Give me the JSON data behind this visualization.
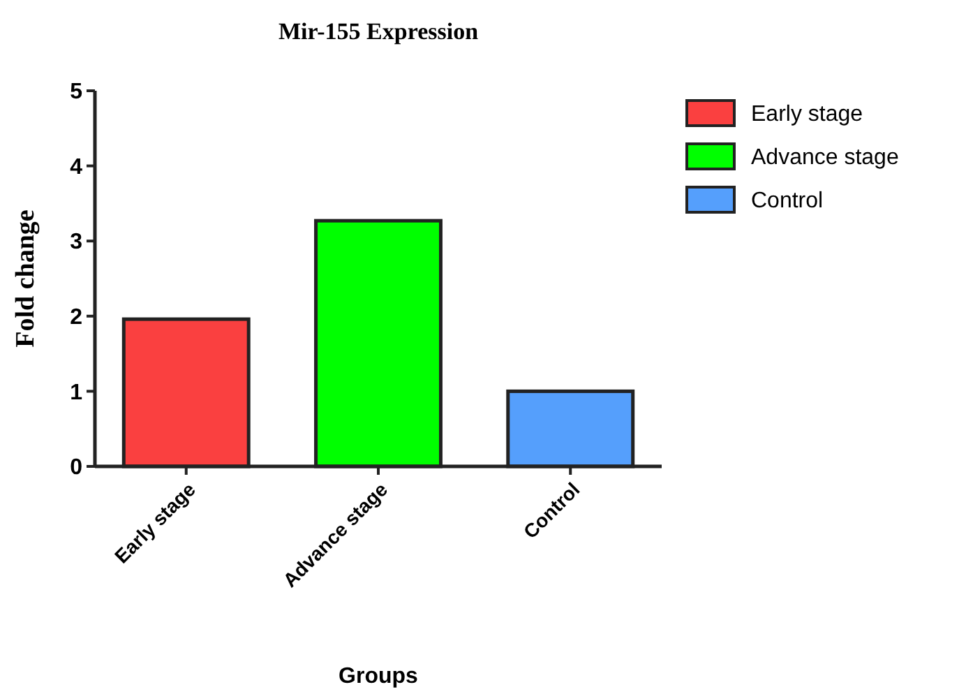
{
  "chart_data": {
    "type": "bar",
    "title": "Mir-155 Expression",
    "xlabel": "Groups",
    "ylabel": "Fold change",
    "categories": [
      "Early stage",
      "Advance stage",
      "Control"
    ],
    "series": [
      {
        "name": "Early stage",
        "color": "#fa4040",
        "values": [
          1.96,
          null,
          null
        ]
      },
      {
        "name": "Advance stage",
        "color": "#00ff00",
        "values": [
          null,
          3.27,
          null
        ]
      },
      {
        "name": "Control",
        "color": "#559ffc",
        "values": [
          null,
          null,
          1.0
        ]
      }
    ],
    "stacked": true,
    "ylim": [
      0,
      5
    ],
    "yticks": [
      0,
      1,
      2,
      3,
      4,
      5
    ],
    "grid": false,
    "legend": "top right"
  }
}
